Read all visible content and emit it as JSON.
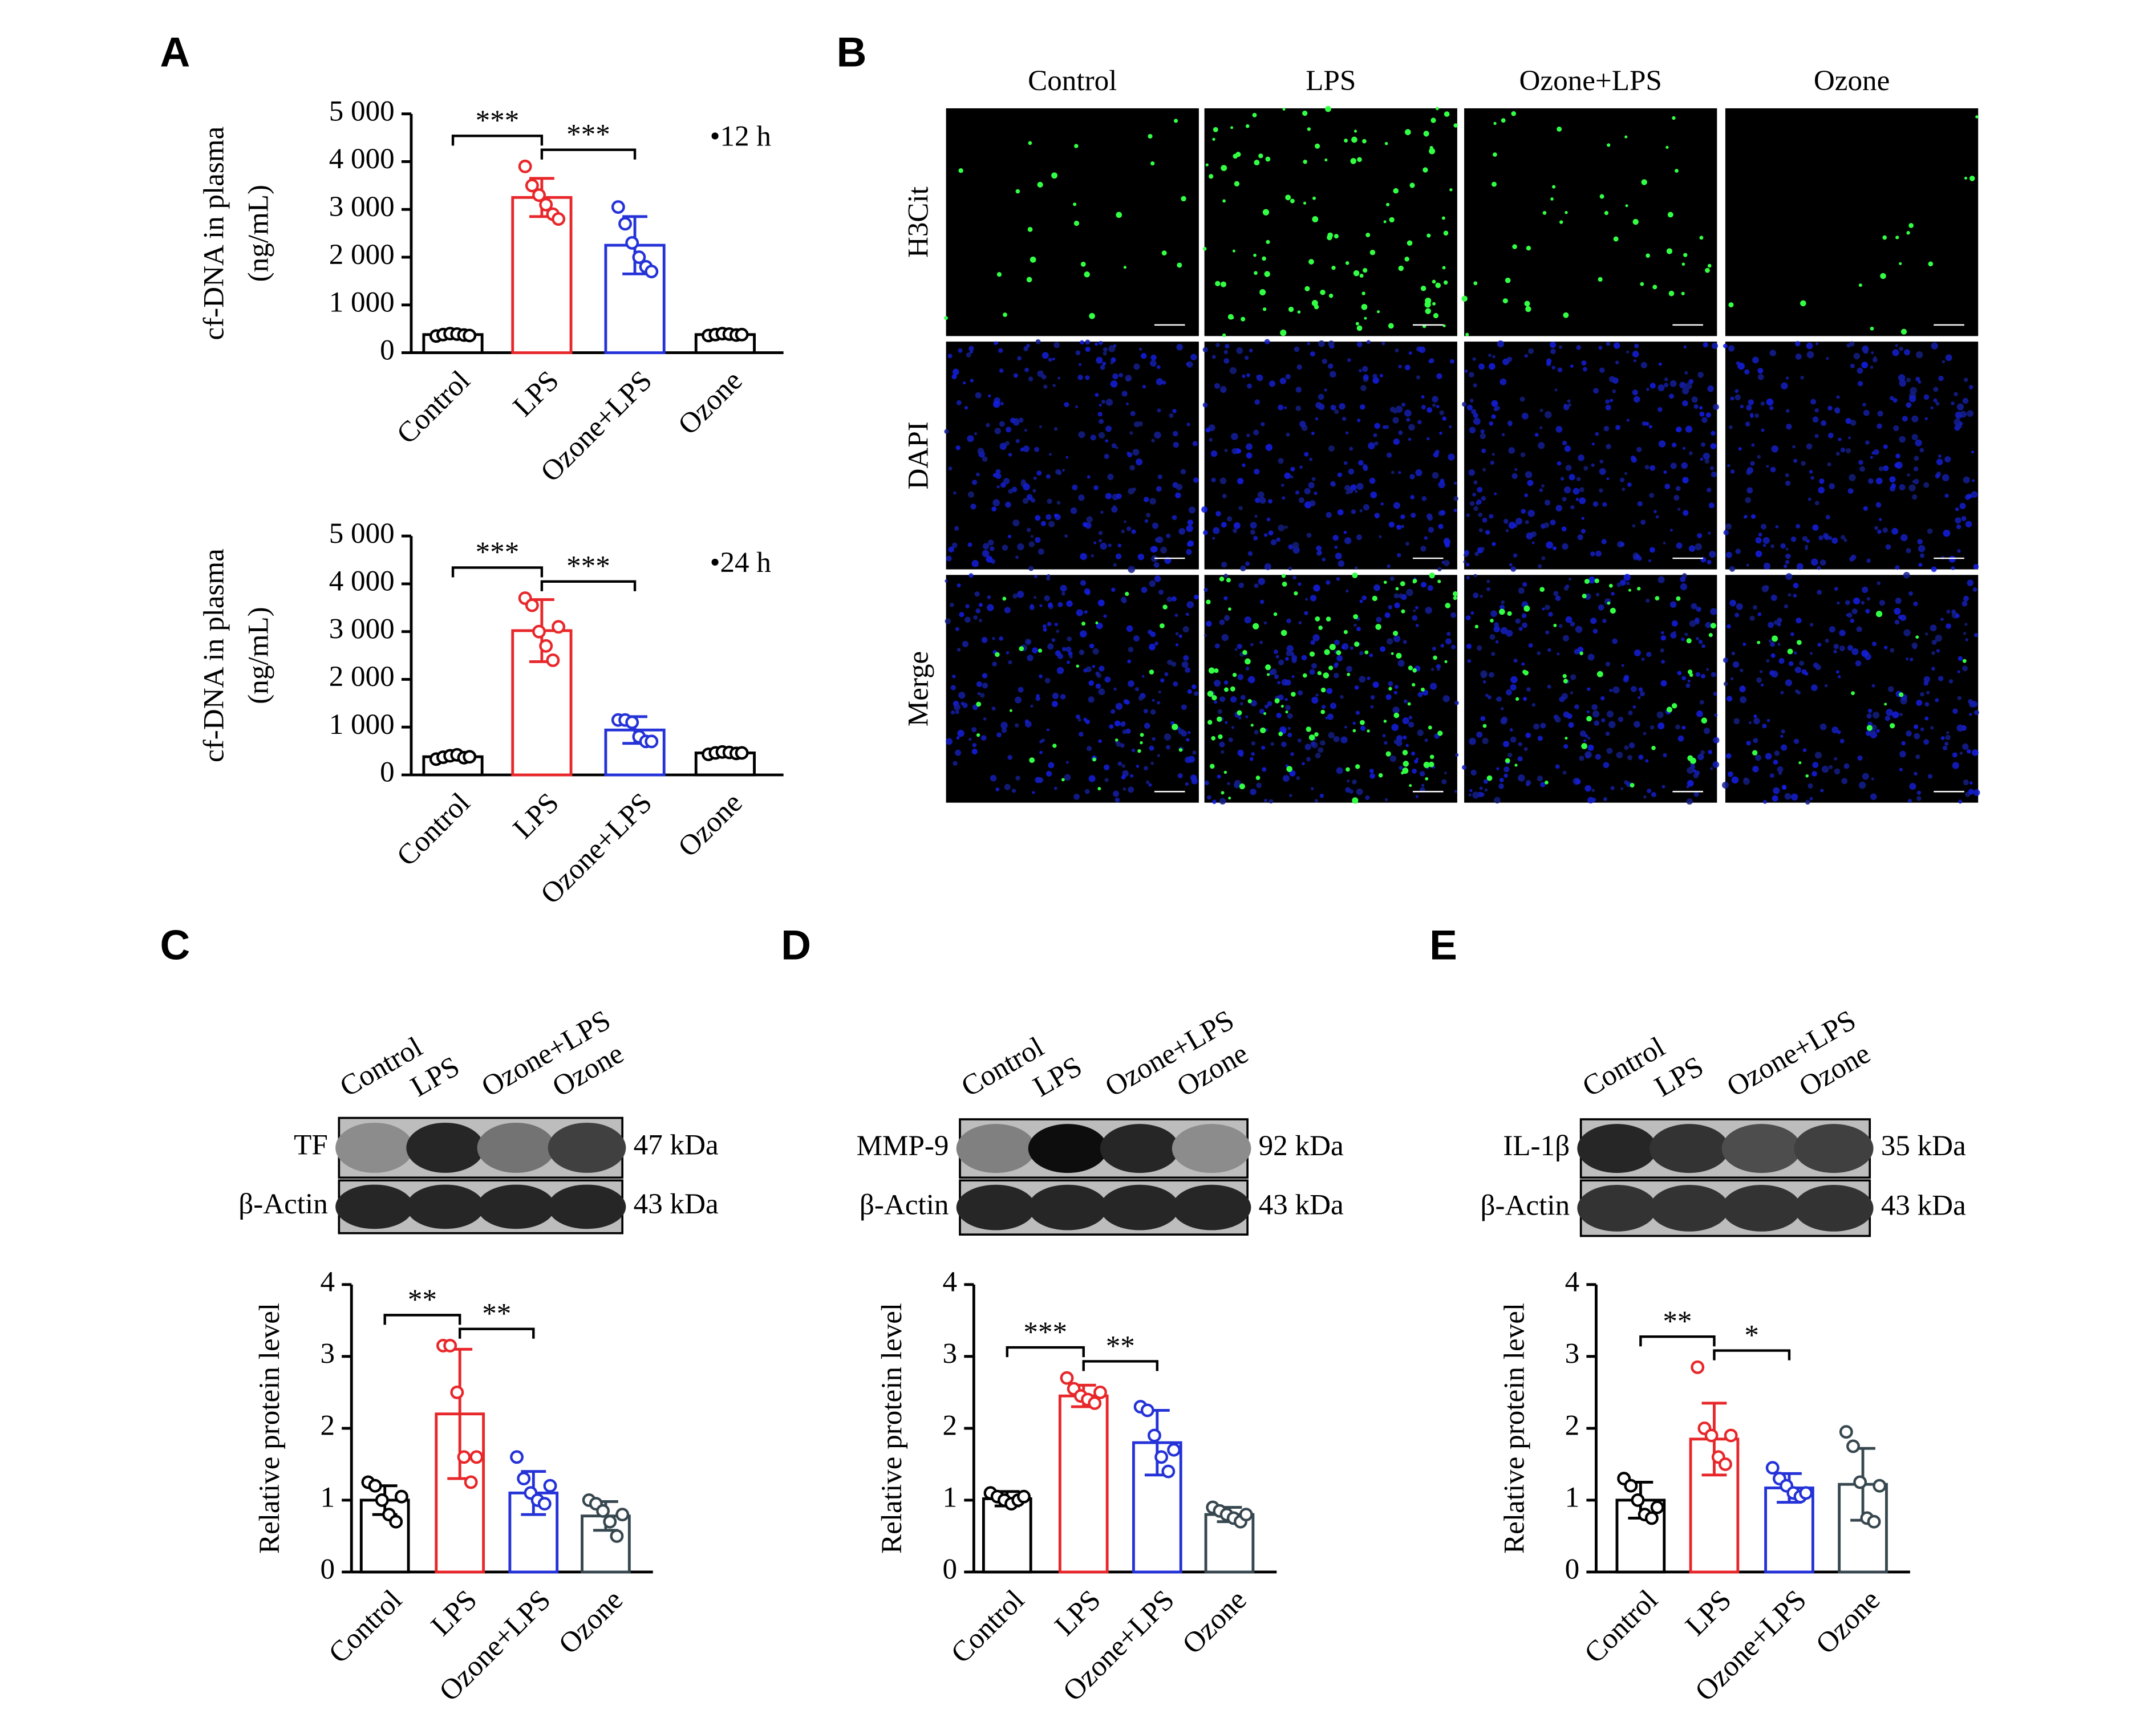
{
  "panel_labels": [
    "A",
    "B",
    "C",
    "D",
    "E"
  ],
  "microscopy": {
    "columns": [
      "Control",
      "LPS",
      "Ozone+LPS",
      "Ozone"
    ],
    "rows": [
      "H3Cit",
      "DAPI",
      "Merge"
    ]
  },
  "blots": [
    {
      "lanes": [
        "Control",
        "LPS",
        "Ozone+LPS",
        "Ozone"
      ],
      "bands": [
        {
          "name": "TF",
          "size": "47 kDa"
        },
        {
          "name": "β-Actin",
          "size": "43 kDa"
        }
      ]
    },
    {
      "lanes": [
        "Control",
        "LPS",
        "Ozone+LPS",
        "Ozone"
      ],
      "bands": [
        {
          "name": "MMP-9",
          "size": "92 kDa"
        },
        {
          "name": "β-Actin",
          "size": "43 kDa"
        }
      ]
    },
    {
      "lanes": [
        "Control",
        "LPS",
        "Ozone+LPS",
        "Ozone"
      ],
      "bands": [
        {
          "name": "IL-1β",
          "size": "35 kDa"
        },
        {
          "name": "β-Actin",
          "size": "43 kDa"
        }
      ]
    }
  ],
  "chart_data": [
    {
      "type": "bar",
      "label": "•12 h",
      "ylabel": [
        "cf-DNA in plasma",
        "(ng/mL)"
      ],
      "categories": [
        "Control",
        "LPS",
        "Ozone+LPS",
        "Ozone"
      ],
      "colors": [
        "#000000",
        "#e8272a",
        "#2432d8",
        "#000000"
      ],
      "values": [
        380,
        3250,
        2250,
        380
      ],
      "errors": [
        40,
        400,
        600,
        30
      ],
      "points": [
        [
          350,
          380,
          400,
          390,
          370,
          360
        ],
        [
          3900,
          3500,
          3300,
          3100,
          2900,
          2800
        ],
        [
          3050,
          2700,
          2300,
          2000,
          1800,
          1700
        ],
        [
          360,
          380,
          400,
          390,
          370,
          380
        ]
      ],
      "ylim": [
        0,
        5000
      ],
      "yticks": [
        0,
        {
          "value": 1000,
          "label": "1 000"
        },
        {
          "value": 2000,
          "label": "2 000"
        },
        {
          "value": 3000,
          "label": "3 000"
        },
        {
          "value": 4000,
          "label": "4 000"
        },
        {
          "value": 5000,
          "label": "5 000"
        }
      ],
      "annotations": [
        {
          "text": "***",
          "span": [
            0,
            1
          ]
        },
        {
          "text": "***",
          "span": [
            1,
            2
          ]
        }
      ]
    },
    {
      "type": "bar",
      "label": "•24 h",
      "ylabel": [
        "cf-DNA in plasma",
        "(ng/mL)"
      ],
      "categories": [
        "Control",
        "LPS",
        "Ozone+LPS",
        "Ozone"
      ],
      "colors": [
        "#000000",
        "#e8272a",
        "#2432d8",
        "#000000"
      ],
      "values": [
        380,
        3020,
        940,
        460
      ],
      "errors": [
        50,
        650,
        280,
        30
      ],
      "points": [
        [
          330,
          370,
          400,
          420,
          360,
          380
        ],
        [
          3700,
          3550,
          3000,
          2700,
          2400,
          3100
        ],
        [
          1150,
          1150,
          1100,
          800,
          700,
          700
        ],
        [
          430,
          460,
          480,
          470,
          450,
          460
        ]
      ],
      "ylim": [
        0,
        5000
      ],
      "yticks": [
        0,
        {
          "value": 1000,
          "label": "1 000"
        },
        {
          "value": 2000,
          "label": "2 000"
        },
        {
          "value": 3000,
          "label": "3 000"
        },
        {
          "value": 4000,
          "label": "4 000"
        },
        {
          "value": 5000,
          "label": "5 000"
        }
      ],
      "annotations": [
        {
          "text": "***",
          "span": [
            0,
            1
          ]
        },
        {
          "text": "***",
          "span": [
            1,
            2
          ]
        }
      ]
    },
    {
      "type": "bar",
      "ylabel": "Relative protein level",
      "categories": [
        "Control",
        "LPS",
        "Ozone+LPS",
        "Ozone"
      ],
      "colors": [
        "#000000",
        "#e8272a",
        "#2432d8",
        "#37474f"
      ],
      "values": [
        1.0,
        2.2,
        1.1,
        0.78
      ],
      "errors": [
        0.2,
        0.9,
        0.3,
        0.2
      ],
      "points": [
        [
          1.25,
          1.2,
          1.0,
          0.8,
          0.7,
          1.05
        ],
        [
          3.15,
          3.15,
          2.5,
          1.6,
          1.25,
          1.6
        ],
        [
          1.6,
          1.3,
          1.1,
          1.0,
          0.95,
          1.2
        ],
        [
          1.0,
          0.95,
          0.85,
          0.7,
          0.5,
          0.8
        ]
      ],
      "ylim": [
        0,
        4
      ],
      "yticks": [
        0,
        1,
        2,
        3,
        4
      ],
      "annotations": [
        {
          "text": "**",
          "span": [
            0,
            1
          ]
        },
        {
          "text": "**",
          "span": [
            1,
            2
          ]
        }
      ]
    },
    {
      "type": "bar",
      "ylabel": "Relative protein level",
      "categories": [
        "Control",
        "LPS",
        "Ozone+LPS",
        "Ozone"
      ],
      "colors": [
        "#000000",
        "#e8272a",
        "#2432d8",
        "#37474f"
      ],
      "values": [
        1.02,
        2.45,
        1.8,
        0.8
      ],
      "errors": [
        0.1,
        0.15,
        0.45,
        0.1
      ],
      "points": [
        [
          1.1,
          1.05,
          1.0,
          0.95,
          1.0,
          1.05
        ],
        [
          2.7,
          2.55,
          2.45,
          2.4,
          2.35,
          2.5
        ],
        [
          2.3,
          2.25,
          1.9,
          1.6,
          1.4,
          1.7
        ],
        [
          0.9,
          0.85,
          0.8,
          0.75,
          0.7,
          0.8
        ]
      ],
      "ylim": [
        0,
        4
      ],
      "yticks": [
        0,
        1,
        2,
        3,
        4
      ],
      "annotations": [
        {
          "text": "***",
          "span": [
            0,
            1
          ]
        },
        {
          "text": "**",
          "span": [
            1,
            2
          ]
        }
      ]
    },
    {
      "type": "bar",
      "ylabel": "Relative protein level",
      "categories": [
        "Control",
        "LPS",
        "Ozone+LPS",
        "Ozone"
      ],
      "colors": [
        "#000000",
        "#e8272a",
        "#2432d8",
        "#37474f"
      ],
      "values": [
        1.0,
        1.85,
        1.17,
        1.22
      ],
      "errors": [
        0.25,
        0.5,
        0.2,
        0.5
      ],
      "points": [
        [
          1.3,
          1.2,
          1.0,
          0.8,
          0.75,
          0.9
        ],
        [
          2.85,
          2.0,
          1.9,
          1.6,
          1.5,
          1.9
        ],
        [
          1.45,
          1.3,
          1.2,
          1.1,
          1.05,
          1.1
        ],
        [
          1.95,
          1.75,
          1.25,
          0.75,
          0.7,
          1.2
        ]
      ],
      "ylim": [
        0,
        4
      ],
      "yticks": [
        0,
        1,
        2,
        3,
        4
      ],
      "annotations": [
        {
          "text": "**",
          "span": [
            0,
            1
          ]
        },
        {
          "text": "*",
          "span": [
            1,
            2
          ]
        }
      ]
    }
  ]
}
